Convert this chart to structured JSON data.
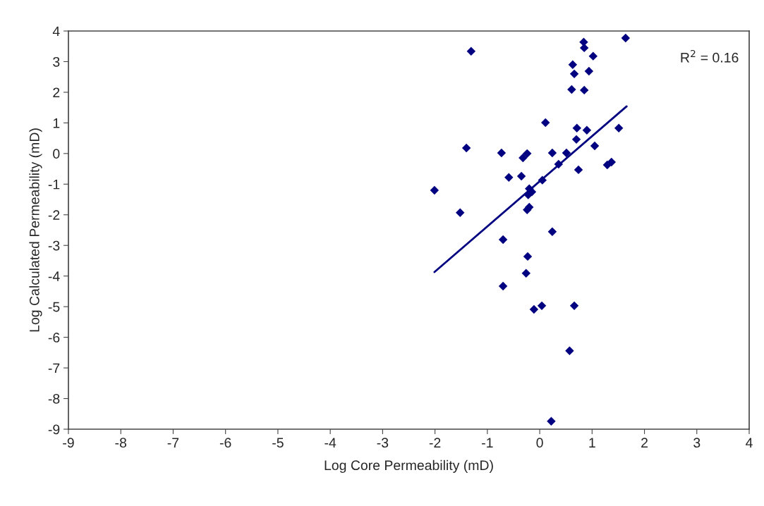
{
  "chart_data": {
    "type": "scatter",
    "xlabel": "Log Core Permeability (mD)",
    "ylabel": "Log Calculated Permeability (mD)",
    "xlim": [
      -9,
      4
    ],
    "ylim": [
      -9,
      4
    ],
    "xticks": [
      -9,
      -8,
      -7,
      -6,
      -5,
      -4,
      -3,
      -2,
      -1,
      0,
      1,
      2,
      3,
      4
    ],
    "yticks": [
      -9,
      -8,
      -7,
      -6,
      -5,
      -4,
      -3,
      -2,
      -1,
      0,
      1,
      2,
      3,
      4
    ],
    "grid": false,
    "annotations": [
      "R$^{2}$ = 0.16"
    ],
    "series": [
      {
        "color": "#000080",
        "marker": "diamond",
        "x": [
          -2.01,
          -1.52,
          -1.4,
          -1.31,
          -0.73,
          -0.7,
          -0.7,
          -0.59,
          -0.35,
          -0.32,
          -0.24,
          -0.2,
          -0.22,
          -0.15,
          -0.24,
          -0.2,
          -0.23,
          -0.26,
          -0.11,
          0.04,
          0.05,
          0.11,
          0.24,
          0.24,
          0.22,
          0.36,
          0.51,
          0.57,
          0.61,
          0.63,
          0.66,
          0.7,
          0.71,
          0.74,
          0.66,
          0.84,
          0.85,
          0.85,
          0.9,
          0.94,
          1.02,
          1.05,
          1.29,
          1.37,
          1.51,
          1.64
        ],
        "values": [
          -1.2,
          -1.93,
          0.18,
          3.34,
          0.02,
          -2.81,
          -4.33,
          -0.78,
          -0.74,
          -0.14,
          0.0,
          -1.15,
          -1.35,
          -1.25,
          -1.84,
          -1.75,
          -3.36,
          -3.91,
          -5.09,
          -4.97,
          -0.87,
          1.01,
          0.02,
          -2.55,
          -8.74,
          -0.35,
          0.02,
          -6.44,
          2.09,
          2.9,
          2.6,
          0.46,
          0.83,
          -0.53,
          -4.97,
          3.64,
          3.45,
          2.07,
          0.76,
          2.69,
          3.18,
          0.25,
          -0.37,
          -0.28,
          0.83,
          3.77
        ]
      },
      {
        "type": "line",
        "color": "#000080",
        "marker": "none",
        "line_style": "solid",
        "x": [
          -2.01,
          1.66
        ],
        "values": [
          -3.87,
          1.54
        ]
      }
    ]
  }
}
